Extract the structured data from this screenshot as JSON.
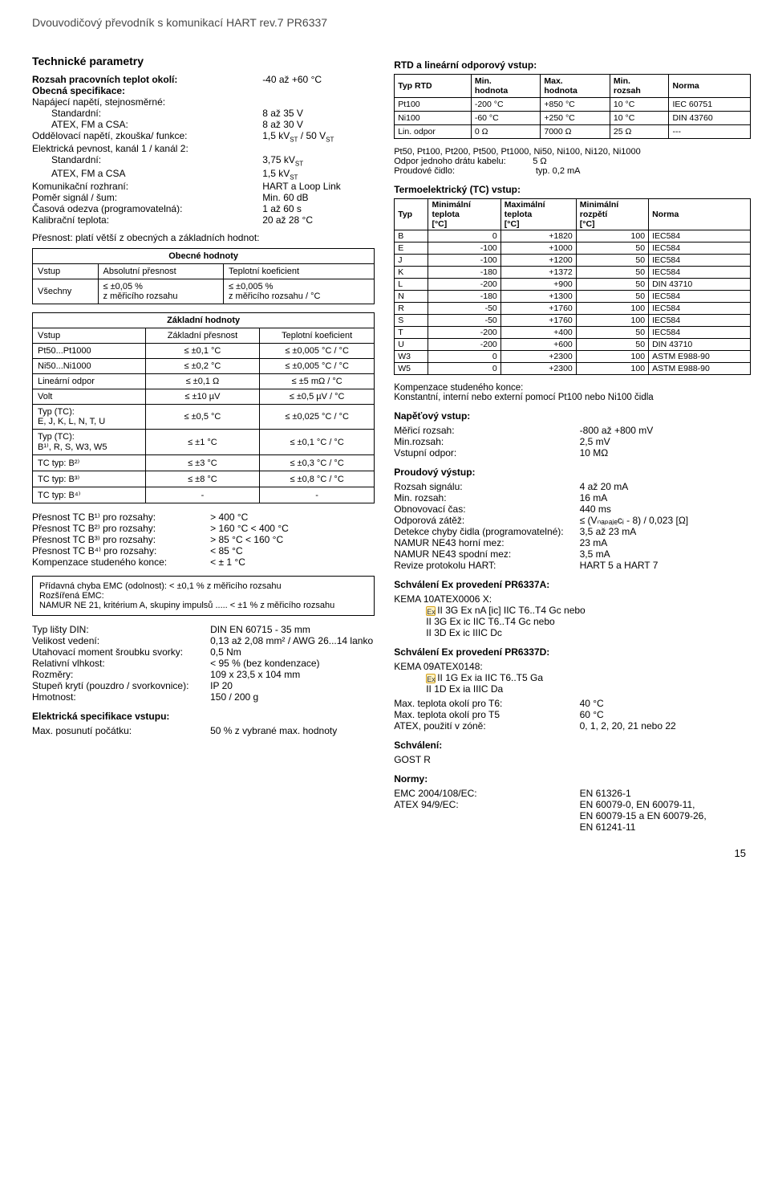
{
  "header": "Dvouvodičový převodník s komunikací HART rev.7 PR6337",
  "tech_params_title": "Technické parametry",
  "left": {
    "rows": [
      {
        "label": "Rozsah pracovních teplot okolí:",
        "val": "-40 až +60 °C",
        "bold": true
      },
      {
        "label": "Obecná specifikace:",
        "bold": true
      },
      {
        "label": "Napájecí napětí, stejnosměrné:"
      },
      {
        "label": "Standardní:",
        "val": "8 až 35 V",
        "indent": true
      },
      {
        "label": "ATEX, FM a CSA:",
        "val": "8 až 30 V",
        "indent": true
      },
      {
        "label": "Oddělovací napětí, zkouška/ funkce:",
        "val": "1,5 kV_ST / 50 V_ST"
      },
      {
        "label": "Elektrická pevnost, kanál 1 / kanál 2:"
      },
      {
        "label": "Standardní:",
        "val": "3,75 kV_ST",
        "indent": true
      },
      {
        "label": "ATEX, FM a CSA",
        "val": "1,5 kV_ST",
        "indent": true
      },
      {
        "label": "Komunikační rozhraní:",
        "val": "HART a Loop Link"
      },
      {
        "label": "Poměr signál / šum:",
        "val": "Min. 60 dB"
      },
      {
        "label": "Časová odezva (programovatelná):",
        "val": "1 až 60 s"
      },
      {
        "label": "Kalibrační teplota:",
        "val": "20 až 28 °C"
      }
    ],
    "accuracy_note": "Přesnost: platí větší z obecných a základních hodnot:",
    "general_values_title": "Obecné hodnoty",
    "general_values": {
      "cols": [
        "Vstup",
        "Absolutní přesnost",
        "Teplotní koeficient"
      ],
      "rows": [
        [
          "Všechny",
          "≤ ±0,05 %\nz měřicího rozsahu",
          "≤ ±0,005 %\nz měřicího rozsahu / °C"
        ]
      ]
    },
    "basic_values_title": "Základní hodnoty",
    "basic_values": {
      "cols": [
        "Vstup",
        "Základní přesnost",
        "Teplotní koeficient"
      ],
      "rows": [
        [
          "Pt50...Pt1000",
          "≤ ±0,1 °C",
          "≤ ±0,005 °C / °C"
        ],
        [
          "Ni50...Ni1000",
          "≤ ±0,2 °C",
          "≤ ±0,005 °C / °C"
        ],
        [
          "Lineární odpor",
          "≤ ±0,1 Ω",
          "≤ ±5 mΩ / °C"
        ],
        [
          "Volt",
          "≤ ±10 µV",
          "≤ ±0,5 µV / °C"
        ],
        [
          "Typ (TC):\nE, J, K, L, N, T, U",
          "≤ ±0,5 °C",
          "≤ ±0,025 °C / °C"
        ],
        [
          "Typ (TC):\nB¹⁾, R, S, W3, W5",
          "≤ ±1 °C",
          "≤ ±0,1 °C / °C"
        ],
        [
          "TC typ: B²⁾",
          "≤ ±3 °C",
          "≤ ±0,3 °C / °C"
        ],
        [
          "TC typ: B³⁾",
          "≤ ±8 °C",
          "≤ ±0,8 °C / °C"
        ],
        [
          "TC typ: B⁴⁾",
          "-",
          "-"
        ]
      ]
    },
    "tcb_notes": [
      {
        "l": "Přesnost TC B¹⁾ pro rozsahy:",
        "v": "> 400 °C"
      },
      {
        "l": "Přesnost TC B²⁾ pro rozsahy:",
        "v": "> 160 °C < 400 °C"
      },
      {
        "l": "Přesnost TC B³⁾ pro rozsahy:",
        "v": "> 85 °C < 160 °C"
      },
      {
        "l": "Přesnost TC B⁴⁾ pro rozsahy:",
        "v": "< 85 °C"
      },
      {
        "l": "Kompenzace studeného konce:",
        "v": "< ± 1 °C"
      }
    ],
    "emc_box": "Přídavná chyba EMC (odolnost): < ±0,1 % z měřicího rozsahu\nRozšířená EMC:\nNAMUR NE 21, kritérium A, skupiny impulsů ..... < ±1 % z měřicího rozsahu",
    "bottom_rows": [
      {
        "l": "Typ lišty DIN:",
        "v": "DIN EN 60715 - 35 mm"
      },
      {
        "l": "Velikost vedení:",
        "v": "0,13 až 2,08 mm² / AWG 26...14 lanko"
      },
      {
        "l": "Utahovací moment šroubku svorky:",
        "v": "0,5 Nm"
      },
      {
        "l": "Relativní vlhkost:",
        "v": "< 95 % (bez kondenzace)"
      },
      {
        "l": "Rozměry:",
        "v": "109 x  23,5 x 104 mm"
      },
      {
        "l": "Stupeň krytí (pouzdro / svorkovnice):",
        "v": "IP 20"
      },
      {
        "l": "Hmotnost:",
        "v": "150 / 200 g"
      }
    ],
    "elec_spec_title": "Elektrická specifikace vstupu:",
    "elec_spec_row": {
      "l": "Max. posunutí počátku:",
      "v": "50 % z vybrané max. hodnoty"
    }
  },
  "right": {
    "rtd_title": "RTD a lineární odporový vstup:",
    "rtd": {
      "cols": [
        "Typ RTD",
        "Min.\nhodnota",
        "Max.\nhodnota",
        "Min.\nrozsah",
        "Norma"
      ],
      "rows": [
        [
          "Pt100",
          "-200 °C",
          "+850 °C",
          "10 °C",
          "IEC 60751"
        ],
        [
          "Ni100",
          "-60 °C",
          "+250 °C",
          "10 °C",
          "DIN 43760"
        ],
        [
          "Lin. odpor",
          "0 Ω",
          "7000 Ω",
          "25 Ω",
          "---"
        ]
      ]
    },
    "rtd_notes": [
      "Pt50, Pt100, Pt200, Pt500, Pt1000, Ni50, Ni100, Ni120, Ni1000",
      "Odpor jednoho drátu kabelu:           5 Ω",
      "Proudové čidlo:                                 typ. 0,2 mA"
    ],
    "tc_title": "Termoelektrický (TC) vstup:",
    "tc": {
      "cols": [
        "Typ",
        "Minimální\nteplota\n[°C]",
        "Maximální\nteplota\n[°C]",
        "Minimální\nrozpětí\n[°C]",
        "Norma"
      ],
      "rows": [
        [
          "B",
          "0",
          "+1820",
          "100",
          "IEC584"
        ],
        [
          "E",
          "-100",
          "+1000",
          "50",
          "IEC584"
        ],
        [
          "J",
          "-100",
          "+1200",
          "50",
          "IEC584"
        ],
        [
          "K",
          "-180",
          "+1372",
          "50",
          "IEC584"
        ],
        [
          "L",
          "-200",
          "+900",
          "50",
          "DIN 43710"
        ],
        [
          "N",
          "-180",
          "+1300",
          "50",
          "IEC584"
        ],
        [
          "R",
          "-50",
          "+1760",
          "100",
          "IEC584"
        ],
        [
          "S",
          "-50",
          "+1760",
          "100",
          "IEC584"
        ],
        [
          "T",
          "-200",
          "+400",
          "50",
          "IEC584"
        ],
        [
          "U",
          "-200",
          "+600",
          "50",
          "DIN 43710"
        ],
        [
          "W3",
          "0",
          "+2300",
          "100",
          "ASTM E988-90"
        ],
        [
          "W5",
          "0",
          "+2300",
          "100",
          "ASTM E988-90"
        ]
      ]
    },
    "cold_junction": "Kompenzace studeného konce:\nKonstantní, interní nebo externí pomocí Pt100 nebo Ni100 čidla",
    "voltage_title": "Napěťový vstup:",
    "voltage_rows": [
      {
        "l": "Měřicí rozsah:",
        "v": "-800 až +800 mV"
      },
      {
        "l": "Min.rozsah:",
        "v": "2,5 mV"
      },
      {
        "l": "Vstupní odpor:",
        "v": "10 MΩ"
      }
    ],
    "current_title": "Proudový výstup:",
    "current_rows": [
      {
        "l": "Rozsah signálu:",
        "v": "4 až 20 mA"
      },
      {
        "l": "Min. rozsah:",
        "v": "16 mA"
      },
      {
        "l": "Obnovovací čas:",
        "v": "440 ms"
      },
      {
        "l": "Odporová zátěž:",
        "v": "≤ (Vₙₐₚₐⱼₑcᵢ - 8) / 0,023 [Ω]"
      },
      {
        "l": "Detekce chyby čidla (programovatelné):",
        "v": "3,5 až 23 mA"
      },
      {
        "l": "NAMUR NE43 horní mez:",
        "v": "23 mA"
      },
      {
        "l": "NAMUR NE43 spodní mez:",
        "v": "3,5 mA"
      },
      {
        "l": "Revize protokolu HART:",
        "v": "HART 5 a HART 7"
      }
    ],
    "approval_a_title": "Schválení Ex provedení PR6337A:",
    "approval_a": [
      "KEMA 10ATEX0006 X:",
      "II 3G Ex nA [ic] IIC T6..T4 Gc nebo",
      "II 3G Ex ic IIC T6..T4 Gc nebo",
      "II 3D Ex ic IIIC Dc"
    ],
    "approval_d_title": "Schválení Ex provedení PR6337D:",
    "approval_d": [
      "KEMA 09ATEX0148:",
      "II 1G Ex ia IIC T6..T5 Ga",
      "II 1D Ex ia IIIC Da"
    ],
    "approval_temps": [
      {
        "l": "Max. teplota okolí pro T6:",
        "v": "40 °C"
      },
      {
        "l": "Max. teplota okolí pro T5",
        "v": "60 °C"
      },
      {
        "l": "ATEX, použití v zóně:",
        "v": "0, 1, 2, 20, 21 nebo 22"
      }
    ],
    "approval_title": "Schválení:",
    "approval_body": "GOST R",
    "norms_title": "Normy:",
    "norms": [
      {
        "l": "EMC 2004/108/EC:",
        "v": "EN 61326-1"
      },
      {
        "l": "ATEX 94/9/EC:",
        "v": "EN 60079-0, EN 60079-11,\nEN 60079-15 a EN 60079-26,\nEN 61241-11"
      }
    ]
  },
  "page_number": "15"
}
